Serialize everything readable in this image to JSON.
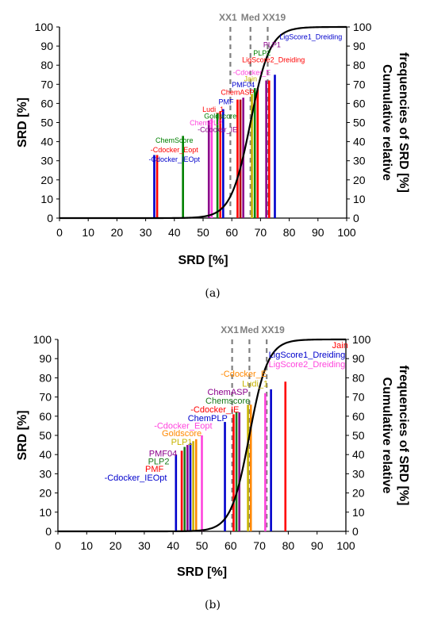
{
  "colors": {
    "red": "#ff0000",
    "blue": "#0000cc",
    "green": "#008000",
    "darkred": "#b00000",
    "purple": "#8b008b",
    "pink": "#ff44dd",
    "orange": "#ff8800",
    "yellow": "#c8b400",
    "darkgreen": "#1a7a1a",
    "curve": "#000000",
    "refline": "#808080"
  },
  "chart_data": [
    {
      "type": "bar",
      "caption": "(a)",
      "xlabel": "SRD [%]",
      "ylabel": "SRD [%]",
      "y2label_line1": "Cumulative relative",
      "y2label_line2": "frequencies of SRD [%]",
      "xlim": [
        0,
        100
      ],
      "ylim": [
        0,
        100
      ],
      "xticks": [
        "0",
        "10",
        "20",
        "30",
        "40",
        "50",
        "60",
        "70",
        "80",
        "90",
        "100"
      ],
      "yticks": [
        "0",
        "10",
        "20",
        "30",
        "40",
        "50",
        "60",
        "70",
        "80",
        "90",
        "100"
      ],
      "reference_lines": [
        {
          "label": "XX1",
          "x": 59.5
        },
        {
          "label": "Med",
          "x": 66.5
        },
        {
          "label": "XX19",
          "x": 72.5
        }
      ],
      "bars": [
        {
          "x": 33,
          "y": 33,
          "color": "blue"
        },
        {
          "x": 34,
          "y": 33,
          "color": "red"
        },
        {
          "x": 43,
          "y": 43,
          "color": "green"
        },
        {
          "x": 52,
          "y": 51,
          "color": "purple"
        },
        {
          "x": 53,
          "y": 52,
          "color": "pink"
        },
        {
          "x": 55,
          "y": 55,
          "color": "green"
        },
        {
          "x": 56,
          "y": 56,
          "color": "red"
        },
        {
          "x": 57,
          "y": 57,
          "color": "blue"
        },
        {
          "x": 62,
          "y": 62,
          "color": "red"
        },
        {
          "x": 63,
          "y": 62,
          "color": "darkred"
        },
        {
          "x": 64,
          "y": 63,
          "color": "purple"
        },
        {
          "x": 67,
          "y": 65,
          "color": "yellow"
        },
        {
          "x": 68,
          "y": 68,
          "color": "green"
        },
        {
          "x": 69,
          "y": 68,
          "color": "red"
        },
        {
          "x": 72,
          "y": 72,
          "color": "purple"
        },
        {
          "x": 73,
          "y": 72,
          "color": "red"
        },
        {
          "x": 75,
          "y": 75,
          "color": "blue"
        }
      ],
      "labels": [
        {
          "text": "-Cdocker_Eopt",
          "color": "red",
          "x": 40,
          "y": 34.5
        },
        {
          "text": "-Cdocker_IEOpt",
          "color": "blue",
          "x": 40,
          "y": 29.5
        },
        {
          "text": "ChemScore",
          "color": "green",
          "x": 40,
          "y": 39.5
        },
        {
          "text": "-Cdocker_IE",
          "color": "purple",
          "x": 55,
          "y": 45
        },
        {
          "text": "ChemPLP",
          "color": "pink",
          "x": 51,
          "y": 48.5
        },
        {
          "text": "Goldscore",
          "color": "green",
          "x": 56,
          "y": 52
        },
        {
          "text": "Ludi_1",
          "color": "red",
          "x": 53.5,
          "y": 55.5
        },
        {
          "text": "PMF",
          "color": "blue",
          "x": 58,
          "y": 59.5
        },
        {
          "text": "ChemASP",
          "color": "red",
          "x": 62,
          "y": 64.5
        },
        {
          "text": "PMF04",
          "color": "blue",
          "x": 64,
          "y": 68.5
        },
        {
          "text": "Jain",
          "color": "yellow",
          "x": 66.5,
          "y": 71.5
        },
        {
          "text": "-Cdocker_E",
          "color": "pink",
          "x": 67,
          "y": 75
        },
        {
          "text": "LigScore2_Dreiding",
          "color": "red",
          "x": 74.5,
          "y": 81.5
        },
        {
          "text": "PLP2",
          "color": "green",
          "x": 70.5,
          "y": 85
        },
        {
          "text": "PLP1",
          "color": "purple",
          "x": 74,
          "y": 89.5
        },
        {
          "text": "LigScore1_Dreiding",
          "color": "blue",
          "x": 87.5,
          "y": 93.5
        }
      ],
      "curve": {
        "center": 66.5,
        "scale": 3.4
      }
    },
    {
      "type": "bar",
      "caption": "(b)",
      "xlabel": "SRD [%]",
      "ylabel": "SRD [%]",
      "y2label_line1": "Cumulative relative",
      "y2label_line2": "frequencies of SRD [%]",
      "xlim": [
        0,
        100
      ],
      "ylim": [
        0,
        100
      ],
      "xticks": [
        "0",
        "10",
        "20",
        "30",
        "40",
        "50",
        "60",
        "70",
        "80",
        "90",
        "100"
      ],
      "yticks": [
        "0",
        "10",
        "20",
        "30",
        "40",
        "50",
        "60",
        "70",
        "80",
        "90",
        "100"
      ],
      "reference_lines": [
        {
          "label": "XX1",
          "x": 60.5
        },
        {
          "label": "Med",
          "x": 66.5
        },
        {
          "label": "XX19",
          "x": 72.5
        }
      ],
      "bars": [
        {
          "x": 41,
          "y": 40,
          "color": "blue"
        },
        {
          "x": 43,
          "y": 42,
          "color": "red"
        },
        {
          "x": 44,
          "y": 44,
          "color": "darkgreen"
        },
        {
          "x": 45,
          "y": 45,
          "color": "purple"
        },
        {
          "x": 46,
          "y": 46,
          "color": "blue"
        },
        {
          "x": 47,
          "y": 47,
          "color": "yellow"
        },
        {
          "x": 48,
          "y": 48,
          "color": "orange"
        },
        {
          "x": 50,
          "y": 50,
          "color": "pink"
        },
        {
          "x": 58,
          "y": 57,
          "color": "blue"
        },
        {
          "x": 61,
          "y": 61,
          "color": "red"
        },
        {
          "x": 62,
          "y": 62,
          "color": "darkgreen"
        },
        {
          "x": 63,
          "y": 62,
          "color": "purple"
        },
        {
          "x": 66,
          "y": 66,
          "color": "yellow"
        },
        {
          "x": 67,
          "y": 66,
          "color": "orange"
        },
        {
          "x": 72,
          "y": 72,
          "color": "pink"
        },
        {
          "x": 74,
          "y": 74,
          "color": "blue"
        },
        {
          "x": 79,
          "y": 78,
          "color": "red"
        }
      ],
      "labels": [
        {
          "text": "-Cdocker_IEOpt",
          "color": "blue",
          "x": 27,
          "y": 26.5
        },
        {
          "text": "PMF",
          "color": "red",
          "x": 33.5,
          "y": 31
        },
        {
          "text": "PLP2",
          "color": "darkgreen",
          "x": 35,
          "y": 35
        },
        {
          "text": "PMF04",
          "color": "purple",
          "x": 36.5,
          "y": 39
        },
        {
          "text": "PLP1",
          "color": "yellow",
          "x": 43,
          "y": 45
        },
        {
          "text": "Goldscore",
          "color": "orange",
          "x": 43,
          "y": 49.5
        },
        {
          "text": "-Cdocker_Eopt",
          "color": "pink",
          "x": 43.5,
          "y": 53.5
        },
        {
          "text": "ChemPLP",
          "color": "blue",
          "x": 52,
          "y": 57.5
        },
        {
          "text": "-Cdocker_IE",
          "color": "red",
          "x": 54.5,
          "y": 62
        },
        {
          "text": "Chemscore",
          "color": "darkgreen",
          "x": 59,
          "y": 66.5
        },
        {
          "text": "ChemASP",
          "color": "purple",
          "x": 59,
          "y": 71
        },
        {
          "text": "Ludi_1",
          "color": "yellow",
          "x": 68.5,
          "y": 75.5
        },
        {
          "text": "-Cdocker_E",
          "color": "orange",
          "x": 64.5,
          "y": 80.5
        },
        {
          "text": "LigScore2_Dreiding",
          "color": "pink",
          "x": 86.5,
          "y": 85.5
        },
        {
          "text": "LigScore1_Dreiding",
          "color": "blue",
          "x": 86.5,
          "y": 90.5
        },
        {
          "text": "Jain",
          "color": "red",
          "x": 98,
          "y": 95.5
        }
      ],
      "curve": {
        "center": 66.5,
        "scale": 3.2
      }
    }
  ]
}
